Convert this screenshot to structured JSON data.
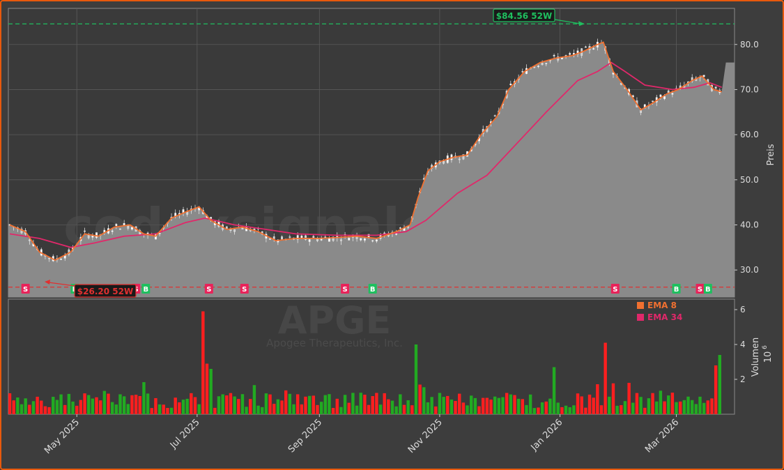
{
  "watermark": {
    "site": "codexsignale.trade",
    "ticker": "APGE",
    "company": "Apogee Therapeutics, Inc."
  },
  "colors": {
    "up": "#22aa22",
    "down": "#ff1f1f",
    "ema8": "#f07030",
    "ema34": "#e0286a",
    "high": "#1fbf5f",
    "low": "#e03030",
    "fill": "#8a8a8a"
  },
  "legend": [
    {
      "label": "EMA 8",
      "color": "#f07030"
    },
    {
      "label": "EMA 34",
      "color": "#e0286a"
    }
  ],
  "annotations": {
    "high": {
      "label": "$84.56 52W",
      "value": 84.56
    },
    "low": {
      "label": "$26.20 52W",
      "value": 26.2
    }
  },
  "chart_data": {
    "type": "line",
    "price_panel": {
      "ylabel": "Preis",
      "ylim": [
        24.0,
        88.0
      ],
      "yticks": [
        30.0,
        40.0,
        50.0,
        60.0,
        70.0,
        80.0
      ],
      "ytick_labels": [
        "30.0",
        "40.0",
        "50.0",
        "60.0",
        "70.0",
        "80.0"
      ],
      "grid": true,
      "series": [
        {
          "name": "EMA 8",
          "points": [
            [
              "2025-03-28",
              40.0
            ],
            [
              "2025-04-05",
              38.5
            ],
            [
              "2025-04-12",
              34.0
            ],
            [
              "2025-04-20",
              32.2
            ],
            [
              "2025-04-28",
              34.0
            ],
            [
              "2025-05-05",
              38.0
            ],
            [
              "2025-05-12",
              37.5
            ],
            [
              "2025-05-20",
              39.5
            ],
            [
              "2025-05-28",
              40.0
            ],
            [
              "2025-06-04",
              38.0
            ],
            [
              "2025-06-10",
              37.5
            ],
            [
              "2025-06-18",
              41.5
            ],
            [
              "2025-06-26",
              43.0
            ],
            [
              "2025-07-02",
              44.0
            ],
            [
              "2025-07-08",
              41.0
            ],
            [
              "2025-07-16",
              39.0
            ],
            [
              "2025-07-24",
              39.5
            ],
            [
              "2025-08-01",
              38.5
            ],
            [
              "2025-08-10",
              36.5
            ],
            [
              "2025-08-20",
              37.0
            ],
            [
              "2025-09-01",
              37.0
            ],
            [
              "2025-09-10",
              37.2
            ],
            [
              "2025-09-20",
              37.5
            ],
            [
              "2025-09-30",
              37.0
            ],
            [
              "2025-10-10",
              38.5
            ],
            [
              "2025-10-17",
              40.0
            ],
            [
              "2025-10-21",
              46.0
            ],
            [
              "2025-10-26",
              52.0
            ],
            [
              "2025-11-01",
              54.0
            ],
            [
              "2025-11-08",
              55.0
            ],
            [
              "2025-11-15",
              55.5
            ],
            [
              "2025-11-22",
              60.0
            ],
            [
              "2025-11-30",
              64.0
            ],
            [
              "2025-12-06",
              70.0
            ],
            [
              "2025-12-14",
              74.0
            ],
            [
              "2025-12-22",
              76.0
            ],
            [
              "2025-12-30",
              77.0
            ],
            [
              "2026-01-07",
              77.5
            ],
            [
              "2026-01-13",
              78.5
            ],
            [
              "2026-01-20",
              80.0
            ],
            [
              "2026-01-23",
              80.5
            ],
            [
              "2026-01-28",
              74.0
            ],
            [
              "2026-02-04",
              70.0
            ],
            [
              "2026-02-11",
              65.5
            ],
            [
              "2026-02-17",
              67.0
            ],
            [
              "2026-02-24",
              69.0
            ],
            [
              "2026-03-02",
              70.0
            ],
            [
              "2026-03-09",
              72.0
            ],
            [
              "2026-03-14",
              73.0
            ],
            [
              "2026-03-20",
              70.0
            ],
            [
              "2026-03-24",
              69.5
            ]
          ]
        },
        {
          "name": "EMA 34",
          "points": [
            [
              "2025-03-28",
              38.0
            ],
            [
              "2025-04-12",
              37.0
            ],
            [
              "2025-04-28",
              35.0
            ],
            [
              "2025-05-10",
              36.0
            ],
            [
              "2025-05-25",
              37.5
            ],
            [
              "2025-06-10",
              38.0
            ],
            [
              "2025-06-25",
              40.5
            ],
            [
              "2025-07-05",
              41.5
            ],
            [
              "2025-07-20",
              40.0
            ],
            [
              "2025-08-05",
              39.0
            ],
            [
              "2025-08-20",
              38.0
            ],
            [
              "2025-09-10",
              37.7
            ],
            [
              "2025-09-30",
              37.7
            ],
            [
              "2025-10-15",
              38.5
            ],
            [
              "2025-10-25",
              41.0
            ],
            [
              "2025-11-10",
              47.0
            ],
            [
              "2025-11-25",
              51.0
            ],
            [
              "2025-12-10",
              58.0
            ],
            [
              "2025-12-25",
              65.0
            ],
            [
              "2026-01-10",
              72.0
            ],
            [
              "2026-01-20",
              74.0
            ],
            [
              "2026-01-27",
              76.0
            ],
            [
              "2026-02-03",
              74.0
            ],
            [
              "2026-02-13",
              71.0
            ],
            [
              "2026-02-27",
              70.0
            ],
            [
              "2026-03-10",
              70.5
            ],
            [
              "2026-03-18",
              71.5
            ],
            [
              "2026-03-24",
              70.5
            ]
          ]
        }
      ],
      "signals": [
        {
          "type": "S",
          "date": "2025-04-05"
        },
        {
          "type": "B",
          "date": "2025-04-30"
        },
        {
          "type": "S",
          "date": "2025-05-31"
        },
        {
          "type": "B",
          "date": "2025-06-05"
        },
        {
          "type": "S",
          "date": "2025-07-07"
        },
        {
          "type": "S",
          "date": "2025-07-25"
        },
        {
          "type": "S",
          "date": "2025-09-14"
        },
        {
          "type": "B",
          "date": "2025-09-28"
        },
        {
          "type": "S",
          "date": "2026-01-29"
        },
        {
          "type": "B",
          "date": "2026-03-01"
        },
        {
          "type": "S",
          "date": "2026-03-13"
        },
        {
          "type": "B",
          "date": "2026-03-17"
        }
      ]
    },
    "volume_panel": {
      "ylabel": "Volumen",
      "unit_label": "10",
      "unit_exp": "6",
      "ylim": [
        0,
        6.6
      ],
      "yticks": [
        2,
        4,
        6
      ],
      "ytick_labels": [
        "2",
        "4",
        "6"
      ],
      "spikes": [
        {
          "date": "2025-07-05",
          "value": 5.9,
          "dir": "down"
        },
        {
          "date": "2025-07-07",
          "value": 2.9,
          "dir": "down"
        },
        {
          "date": "2025-07-09",
          "value": 2.6,
          "dir": "up"
        },
        {
          "date": "2025-10-21",
          "value": 4.0,
          "dir": "up"
        },
        {
          "date": "2025-10-23",
          "value": 1.7,
          "dir": "down"
        },
        {
          "date": "2025-12-29",
          "value": 2.7,
          "dir": "up"
        },
        {
          "date": "2026-01-24",
          "value": 4.1,
          "dir": "down"
        },
        {
          "date": "2026-02-05",
          "value": 1.8,
          "dir": "down"
        },
        {
          "date": "2026-03-22",
          "value": 2.8,
          "dir": "down"
        },
        {
          "date": "2026-03-24",
          "value": 3.4,
          "dir": "up"
        }
      ]
    },
    "x_axis": {
      "ticks": [
        {
          "date": "2025-05-01",
          "label": "May 2025"
        },
        {
          "date": "2025-07-01",
          "label": "Jul 2025"
        },
        {
          "date": "2025-09-01",
          "label": "Sep 2025"
        },
        {
          "date": "2025-11-01",
          "label": "Nov 2025"
        },
        {
          "date": "2026-01-01",
          "label": "Jan 2026"
        },
        {
          "date": "2026-03-01",
          "label": "Mar 2026"
        }
      ]
    },
    "last_price": 79.0
  }
}
